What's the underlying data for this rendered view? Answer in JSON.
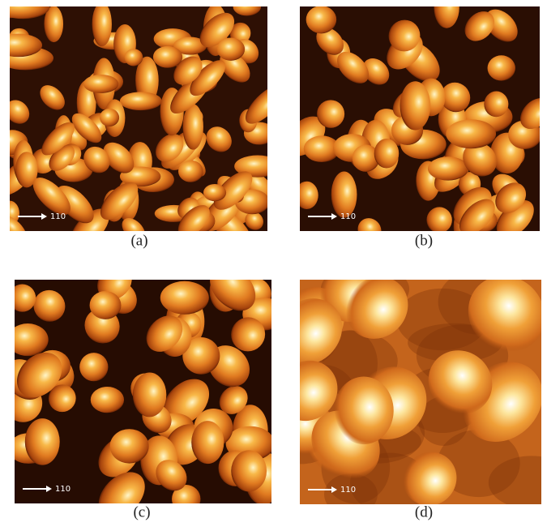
{
  "panels": [
    {
      "caption": "(a)",
      "scale_label": "110"
    },
    {
      "caption": "(b)",
      "scale_label": "110"
    },
    {
      "caption": "(c)",
      "scale_label": "110"
    },
    {
      "caption": "(d)",
      "scale_label": "110"
    }
  ]
}
